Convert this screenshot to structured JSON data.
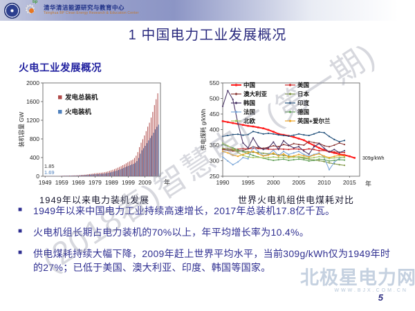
{
  "header": {
    "org_name_cn": "清华清洁能源研究与教育中心",
    "org_name_en": "Tsinghua BP Clean Energy Research & Education Center",
    "bp_label": "bp"
  },
  "slide": {
    "title": "1 中国电力工业发展概况",
    "subtitle": "火电工业发展概况",
    "page_number": "5",
    "watermark_diagonal": "(2018春)智慧电厂(第一期)",
    "watermark_site": "北极星电力网",
    "watermark_url": "WWW.BJX.COM.CN"
  },
  "icons": {
    "bullet": "■",
    "gear": "⚙"
  },
  "colors": {
    "title": "#2a2a7e",
    "subtitle": "#2222a0",
    "bullet": "#2e2e90",
    "caption": "#17172f",
    "pagenum": "#2b2b80"
  },
  "bullets": [
    "1949年以来中国电力工业持续高速增长，2017年总装机17.8亿千瓦。",
    "火电机组长期占电力装机的70%以上，年平均增长率为10.4%。",
    "供电煤耗持续大幅下降，2009年赶上世界平均水平，当前309g/kWh仅为1949年时的27%；已低于美国、澳大利亚、印度、韩国等国家。"
  ],
  "chart_data": [
    {
      "type": "bar",
      "title": "1949年以来电力装机发展",
      "xlabel": "年",
      "ylabel": "装机容量 GW",
      "ylim": [
        0,
        2000
      ],
      "yticks": [
        0,
        400,
        800,
        1200,
        1600,
        2000
      ],
      "xticks": [
        1949,
        1959,
        1969,
        1979,
        1989,
        1999,
        2009
      ],
      "years_start": 1949,
      "grid": false,
      "legend_position": "upper-left-inside",
      "annotations": [
        {
          "text": "1.85",
          "color": "#333333"
        },
        {
          "text": "1.69",
          "color": "#4f81bd"
        }
      ],
      "series": [
        {
          "name": "发电总装机",
          "color": "#b04a48",
          "values": [
            1.85,
            2.0,
            2.2,
            2.5,
            2.9,
            3.3,
            3.8,
            4.3,
            4.6,
            6.3,
            9.5,
            11.9,
            12.5,
            13.1,
            13.7,
            14.4,
            15.1,
            16.5,
            17.6,
            18.7,
            20.1,
            23.8,
            26.6,
            29.6,
            32.7,
            35.7,
            43.4,
            47.1,
            51.4,
            57.1,
            63.0,
            65.9,
            69.1,
            72.4,
            76.4,
            80.1,
            87.1,
            93.8,
            102.9,
            115.5,
            126.6,
            137.9,
            151.5,
            166.5,
            182.9,
            199.9,
            217.2,
            236.5,
            254.2,
            277.3,
            298.8,
            319.3,
            338.5,
            356.6,
            391.4,
            440.7,
            517.2,
            623.7,
            718.2,
            792.7,
            874.1,
            966.4,
            1063.0,
            1146.8,
            1257.7,
            1378.9,
            1525.3,
            1650.5,
            1777.0
          ]
        },
        {
          "name": "火电装机",
          "color": "#4f81bd",
          "values": [
            1.69,
            1.8,
            2.0,
            2.2,
            2.6,
            2.9,
            3.4,
            3.8,
            4.0,
            5.5,
            8.3,
            10.4,
            10.8,
            11.2,
            11.6,
            12.1,
            12.5,
            13.5,
            14.2,
            14.9,
            15.8,
            18.6,
            20.6,
            22.7,
            24.9,
            26.9,
            32.4,
            34.9,
            37.8,
            39.8,
            44.0,
            45.6,
            47.4,
            49.4,
            52.1,
            54.6,
            60.6,
            65.8,
            72.7,
            81.9,
            89.6,
            101.8,
            111.8,
            122.5,
            133.2,
            146.1,
            162.9,
            178.9,
            192.2,
            209.9,
            223.4,
            237.5,
            253.0,
            265.5,
            289.8,
            325.5,
            391.3,
            484.1,
            556.1,
            601.3,
            652.1,
            709.7,
            768.3,
            819.2,
            870.1,
            932.3,
            1005.0,
            1060.0,
            1106.0
          ]
        }
      ]
    },
    {
      "type": "line",
      "title": "世界火电机组供电煤耗对比",
      "xlabel": "年",
      "ylabel": "供电煤耗 g/kWh",
      "ylim": [
        250,
        550
      ],
      "yticks": [
        250,
        300,
        350,
        400,
        450,
        500,
        550
      ],
      "xticks": [
        1990,
        1995,
        2000,
        2005,
        2010,
        2015
      ],
      "x_start": 1990,
      "x_end": 2017,
      "grid": false,
      "legend_position": "top-inside-two-columns",
      "annotation": "309g/kWh",
      "series": [
        {
          "name": "中国",
          "color": "#ff1a1a",
          "bold": true,
          "values": [
            427,
            424,
            421,
            418,
            415,
            412,
            410,
            407,
            404,
            399,
            393,
            386,
            383,
            380,
            376,
            371,
            366,
            357,
            349,
            341,
            334,
            329,
            325,
            321,
            318,
            314,
            309
          ]
        },
        {
          "name": "美国",
          "color": "#cc2222",
          "values": [
            337,
            338,
            336,
            337,
            339,
            338,
            340,
            339,
            338,
            337,
            336,
            338,
            337,
            336,
            338,
            337,
            335,
            338,
            336,
            332,
            333,
            330,
            328,
            327,
            326
          ]
        },
        {
          "name": "澳大利亚",
          "color": "#8c3836",
          "values": [
            336,
            334,
            331,
            330,
            333,
            338,
            345,
            341,
            340,
            343,
            348,
            345,
            352,
            348,
            355,
            352,
            350,
            362,
            358,
            356,
            348,
            345,
            350,
            357,
            352
          ]
        },
        {
          "name": "日本",
          "color": "#7d9441",
          "values": [
            340,
            337,
            334,
            332,
            330,
            329,
            327,
            326,
            324,
            322,
            321,
            319,
            317,
            315,
            313,
            311,
            308,
            305,
            302,
            300,
            297,
            293,
            290,
            287,
            285
          ]
        },
        {
          "name": "韩国",
          "color": "#4a3566",
          "values": [
            475,
            525,
            497,
            420,
            357,
            341,
            373,
            346,
            336,
            341,
            360,
            336,
            364,
            350,
            341,
            345,
            331,
            321,
            345,
            355,
            340,
            328,
            336,
            326,
            332
          ]
        },
        {
          "name": "印度",
          "color": "#1f4e79",
          "values": [
            378,
            381,
            384,
            385,
            382,
            384,
            394,
            390,
            386,
            388,
            386,
            383,
            381,
            379,
            382,
            386,
            383,
            381,
            386,
            392,
            390,
            378,
            368,
            361,
            365
          ]
        },
        {
          "name": "法国",
          "color": "#7ba7d9",
          "values": [
            312,
            299,
            287,
            296,
            310,
            306,
            344,
            330,
            316,
            320,
            334,
            316,
            330,
            320,
            325,
            330,
            320,
            315,
            320,
            325,
            310,
            271,
            295,
            308,
            312
          ]
        },
        {
          "name": "德国",
          "color": "#5f9e56",
          "values": [
            352,
            347,
            341,
            335,
            329,
            323,
            317,
            312,
            308,
            304,
            301,
            303,
            305,
            301,
            303,
            305,
            303,
            299,
            301,
            305,
            303,
            299,
            301,
            303,
            302
          ]
        },
        {
          "name": "北欧",
          "color": "#a4c45e",
          "values": [
            357,
            348,
            338,
            326,
            317,
            312,
            310,
            311,
            309,
            310,
            312,
            310,
            311,
            309,
            311,
            313,
            311,
            308,
            310,
            313,
            311,
            307,
            309,
            311,
            310
          ]
        },
        {
          "name": "英国+爱尔兰",
          "color": "#eea320",
          "values": [
            330,
            325,
            318,
            314,
            320,
            325,
            330,
            322,
            315,
            318,
            325,
            315,
            322,
            312,
            315,
            320,
            316,
            312,
            318,
            322,
            315,
            310,
            314,
            317,
            315
          ]
        }
      ]
    }
  ]
}
